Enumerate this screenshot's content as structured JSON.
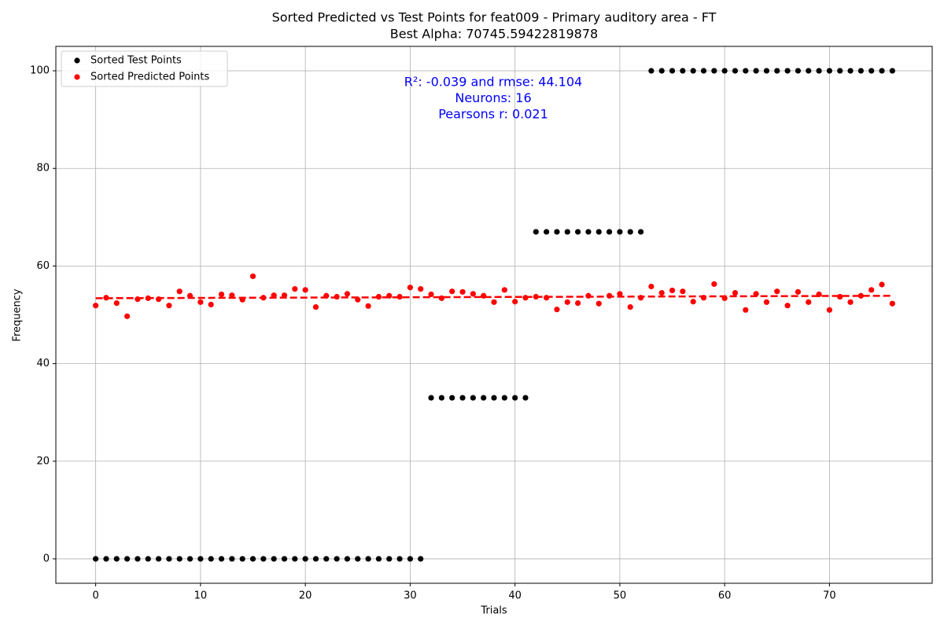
{
  "chart_data": {
    "type": "scatter",
    "title": "Sorted Predicted vs Test Points for feat009 - Primary auditory area - FT",
    "subtitle": "Best Alpha: 70745.59422819878",
    "x_label": "Trials",
    "y_label": "Frequency",
    "annotations": [
      "R²: -0.039 and rmse: 44.104",
      "Neurons: 16",
      "Pearsons r: 0.021"
    ],
    "annotation_color": "#0000ff",
    "legend": "upper left",
    "grid": true,
    "xlim": [
      -3.8,
      79.8
    ],
    "ylim": [
      -5,
      105
    ],
    "xticks": [
      0,
      10,
      20,
      30,
      40,
      50,
      60,
      70
    ],
    "yticks": [
      0,
      20,
      40,
      60,
      80,
      100
    ],
    "x": [
      0,
      1,
      2,
      3,
      4,
      5,
      6,
      7,
      8,
      9,
      10,
      11,
      12,
      13,
      14,
      15,
      16,
      17,
      18,
      19,
      20,
      21,
      22,
      23,
      24,
      25,
      26,
      27,
      28,
      29,
      30,
      31,
      32,
      33,
      34,
      35,
      36,
      37,
      38,
      39,
      40,
      41,
      42,
      43,
      44,
      45,
      46,
      47,
      48,
      49,
      50,
      51,
      52,
      53,
      54,
      55,
      56,
      57,
      58,
      59,
      60,
      61,
      62,
      63,
      64,
      65,
      66,
      67,
      68,
      69,
      70,
      71,
      72,
      73,
      74,
      75,
      76
    ],
    "series": [
      {
        "name": "Sorted Test Points",
        "color": "#000000",
        "values": [
          0,
          0,
          0,
          0,
          0,
          0,
          0,
          0,
          0,
          0,
          0,
          0,
          0,
          0,
          0,
          0,
          0,
          0,
          0,
          0,
          0,
          0,
          0,
          0,
          0,
          0,
          0,
          0,
          0,
          0,
          0,
          0,
          33,
          33,
          33,
          33,
          33,
          33,
          33,
          33,
          33,
          33,
          67,
          67,
          67,
          67,
          67,
          67,
          67,
          67,
          67,
          67,
          67,
          100,
          100,
          100,
          100,
          100,
          100,
          100,
          100,
          100,
          100,
          100,
          100,
          100,
          100,
          100,
          100,
          100,
          100,
          100,
          100,
          100,
          100,
          100,
          100
        ]
      },
      {
        "name": "Sorted Predicted Points",
        "color": "#ff0000",
        "values": [
          51.9,
          53.5,
          52.4,
          49.7,
          53.2,
          53.4,
          53.2,
          51.9,
          54.8,
          53.9,
          52.6,
          52.1,
          54.2,
          54.0,
          53.1,
          57.9,
          53.5,
          54.0,
          54.0,
          55.3,
          55.1,
          51.6,
          53.9,
          53.7,
          54.3,
          53.1,
          51.8,
          53.7,
          53.9,
          53.7,
          55.6,
          55.3,
          54.2,
          53.4,
          54.8,
          54.7,
          54.3,
          53.9,
          52.6,
          55.1,
          52.7,
          53.5,
          53.7,
          53.5,
          51.1,
          52.6,
          52.4,
          53.9,
          52.3,
          53.9,
          54.3,
          51.6,
          53.5,
          55.8,
          54.5,
          55.0,
          54.8,
          52.7,
          53.5,
          56.3,
          53.4,
          54.5,
          51.0,
          54.3,
          52.6,
          54.8,
          51.9,
          54.7,
          52.6,
          54.2,
          51.0,
          53.7,
          52.6,
          53.9,
          55.1,
          56.2,
          52.3
        ]
      }
    ],
    "trend": {
      "color": "#ff0000",
      "x": [
        0,
        76
      ],
      "values": [
        53.4,
        53.9
      ]
    }
  }
}
